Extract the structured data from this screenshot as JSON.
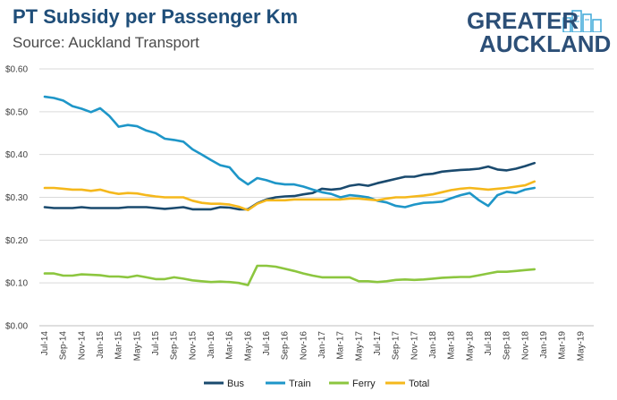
{
  "header": {
    "title": "PT Subsidy per Passenger Km",
    "subtitle": "Source: Auckland Transport"
  },
  "logo": {
    "line1": "GREATER",
    "line2": "AUCKLAND"
  },
  "chart_data": {
    "type": "line",
    "title": "PT Subsidy per Passenger Km",
    "subtitle": "Source: Auckland Transport",
    "xlabel": "",
    "ylabel": "",
    "ylim": [
      0,
      0.6
    ],
    "y_ticks": [
      "$0.00",
      "$0.10",
      "$0.20",
      "$0.30",
      "$0.40",
      "$0.50",
      "$0.60"
    ],
    "y_tick_values": [
      0,
      0.1,
      0.2,
      0.3,
      0.4,
      0.5,
      0.6
    ],
    "grid": true,
    "legend_position": "bottom",
    "x_tick_labels": [
      "Jul-14",
      "Sep-14",
      "Nov-14",
      "Jan-15",
      "Mar-15",
      "May-15",
      "Jul-15",
      "Sep-15",
      "Nov-15",
      "Jan-16",
      "Mar-16",
      "May-16",
      "Jul-16",
      "Sep-16",
      "Nov-16",
      "Jan-17",
      "Mar-17",
      "May-17",
      "Jul-17",
      "Sep-17",
      "Nov-17",
      "Jan-18",
      "Mar-18",
      "May-18",
      "Jul-18",
      "Sep-18",
      "Nov-18",
      "Jan-19",
      "Mar-19",
      "May-19"
    ],
    "series": [
      {
        "name": "Bus",
        "color": "#1a4a6e",
        "values": [
          0.277,
          0.275,
          0.275,
          0.275,
          0.277,
          0.275,
          0.275,
          0.275,
          0.275,
          0.277,
          0.277,
          0.277,
          0.275,
          0.273,
          0.275,
          0.277,
          0.272,
          0.272,
          0.272,
          0.277,
          0.276,
          0.272,
          0.272,
          0.286,
          0.295,
          0.3,
          0.302,
          0.303,
          0.307,
          0.31,
          0.32,
          0.318,
          0.32,
          0.327,
          0.33,
          0.327,
          0.333,
          0.338,
          0.343,
          0.348,
          0.348,
          0.353,
          0.355,
          0.36,
          0.362,
          0.364,
          0.365,
          0.367,
          0.372,
          0.365,
          0.363,
          0.367,
          0.373,
          0.38
        ]
      },
      {
        "name": "Train",
        "color": "#1e96c8",
        "values": [
          0.535,
          0.532,
          0.526,
          0.513,
          0.507,
          0.499,
          0.508,
          0.49,
          0.465,
          0.469,
          0.466,
          0.456,
          0.45,
          0.437,
          0.434,
          0.43,
          0.412,
          0.4,
          0.387,
          0.375,
          0.37,
          0.345,
          0.33,
          0.345,
          0.34,
          0.333,
          0.33,
          0.33,
          0.325,
          0.318,
          0.312,
          0.308,
          0.3,
          0.305,
          0.303,
          0.3,
          0.292,
          0.288,
          0.28,
          0.277,
          0.283,
          0.287,
          0.288,
          0.29,
          0.298,
          0.305,
          0.31,
          0.293,
          0.28,
          0.305,
          0.313,
          0.31,
          0.318,
          0.322
        ]
      },
      {
        "name": "Ferry",
        "color": "#8cc63f",
        "values": [
          0.122,
          0.122,
          0.117,
          0.117,
          0.12,
          0.119,
          0.118,
          0.115,
          0.115,
          0.113,
          0.117,
          0.113,
          0.109,
          0.109,
          0.113,
          0.11,
          0.106,
          0.104,
          0.102,
          0.103,
          0.102,
          0.1,
          0.095,
          0.14,
          0.14,
          0.138,
          0.133,
          0.128,
          0.122,
          0.117,
          0.113,
          0.113,
          0.113,
          0.113,
          0.104,
          0.104,
          0.102,
          0.104,
          0.107,
          0.108,
          0.107,
          0.108,
          0.11,
          0.112,
          0.113,
          0.114,
          0.114,
          0.118,
          0.122,
          0.126,
          0.126,
          0.128,
          0.13,
          0.132
        ]
      },
      {
        "name": "Total",
        "color": "#f5b81c",
        "values": [
          0.322,
          0.322,
          0.32,
          0.318,
          0.318,
          0.315,
          0.318,
          0.312,
          0.308,
          0.31,
          0.309,
          0.305,
          0.302,
          0.3,
          0.3,
          0.3,
          0.292,
          0.287,
          0.285,
          0.285,
          0.283,
          0.278,
          0.27,
          0.285,
          0.293,
          0.293,
          0.293,
          0.295,
          0.295,
          0.295,
          0.295,
          0.295,
          0.295,
          0.297,
          0.297,
          0.295,
          0.293,
          0.297,
          0.3,
          0.3,
          0.302,
          0.304,
          0.307,
          0.312,
          0.317,
          0.32,
          0.322,
          0.32,
          0.318,
          0.32,
          0.322,
          0.325,
          0.328,
          0.337
        ]
      }
    ]
  }
}
